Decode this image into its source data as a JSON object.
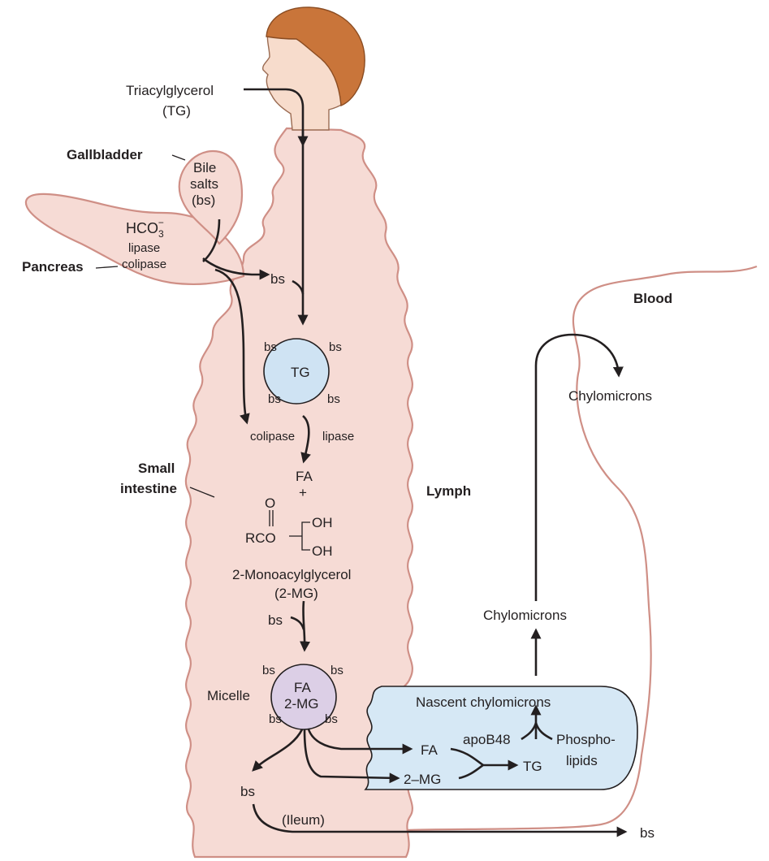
{
  "labels": {
    "triacylglycerol": "Triacylglycerol",
    "tg_abbrev": "(TG)",
    "gallbladder": "Gallbladder",
    "bile": "Bile",
    "salts": "salts",
    "bs_paren": "(bs)",
    "hco3_base": "HCO",
    "hco3_sub": "3",
    "hco3_sup": "−",
    "lipase": "lipase",
    "colipase": "colipase",
    "pancreas": "Pancreas",
    "bs": "bs",
    "tg": "TG",
    "colipase2": "colipase",
    "lipase2": "lipase",
    "small": "Small",
    "intestine": "intestine",
    "fa": "FA",
    "plus": "+",
    "o": "O",
    "rco": "RCO",
    "oh1": "OH",
    "oh2": "OH",
    "monoacylglycerol": "2-Monoacylglycerol",
    "mg_abbrev": "(2-MG)",
    "micelle": "Micelle",
    "micelle_fa": "FA",
    "micelle_mg": "2-MG",
    "lymph": "Lymph",
    "blood": "Blood",
    "chylomicrons_blood": "Chylomicrons",
    "chylomicrons_lymph": "Chylomicrons",
    "nascent_chylomicrons": "Nascent chylomicrons",
    "apob48": "apoB48",
    "phospho": "Phospho-",
    "lipids": "lipids",
    "fa_cell": "FA",
    "mg_cell": "2–MG",
    "tg_cell": "TG",
    "ileum": "(Ileum)",
    "bs_out": "bs",
    "bs_recycle": "bs"
  },
  "colors": {
    "intestine_fill": "#f6dbd5",
    "intestine_stroke": "#cf8f86",
    "droplet_fill": "#cfe3f3",
    "micelle_fill": "#dccfe6",
    "cell_fill": "#d6e8f5",
    "skin": "#f7dccc",
    "hair": "#c9753a"
  }
}
